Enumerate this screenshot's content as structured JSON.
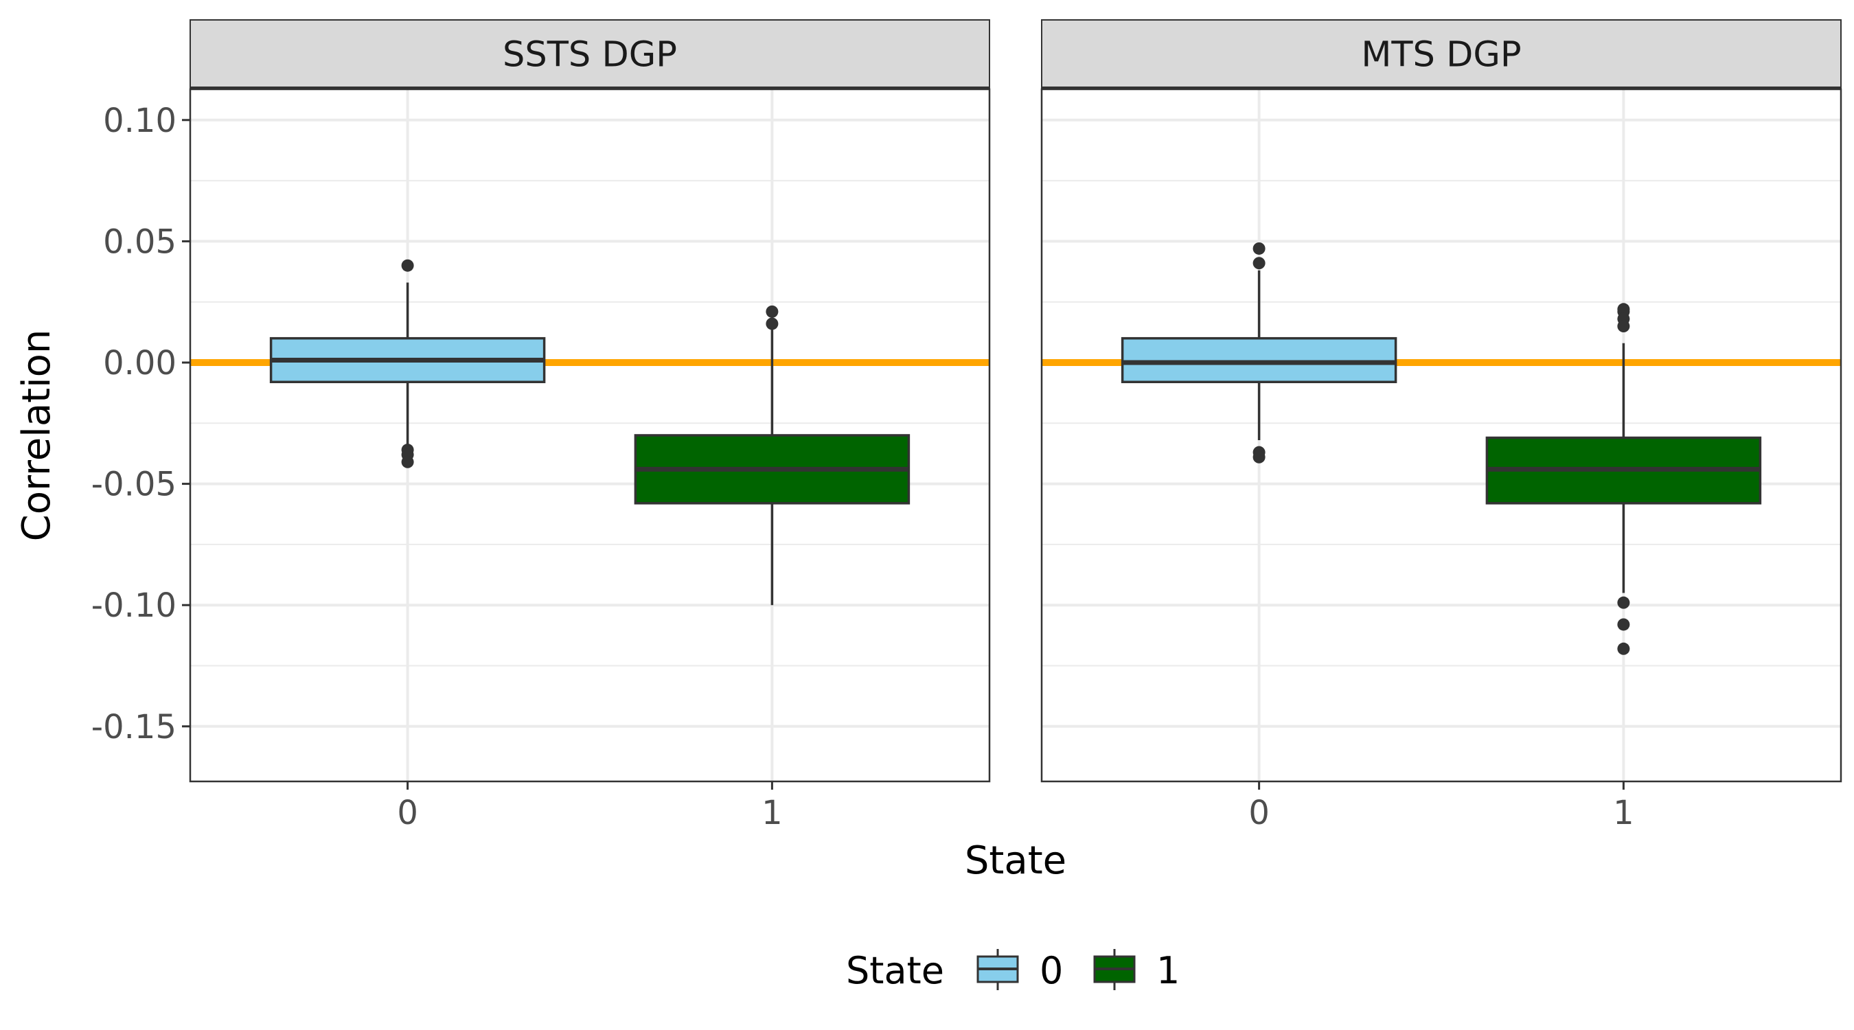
{
  "chart_data": {
    "type": "boxplot",
    "xlabel": "State",
    "ylabel": "Correlation",
    "ylim": [
      -0.172,
      0.113
    ],
    "y_ticks": [
      0.1,
      0.05,
      0.0,
      -0.05,
      -0.1,
      -0.15
    ],
    "y_tick_labels": [
      "0.10",
      "0.05",
      "0.00",
      "-0.05",
      "-0.10",
      "-0.15"
    ],
    "categories": [
      "0",
      "1"
    ],
    "reference_line": {
      "y": 0.0,
      "color": "#FFA500"
    },
    "legend": {
      "title": "State",
      "position": "bottom",
      "items": [
        {
          "label": "0",
          "color": "#87CEEB"
        },
        {
          "label": "1",
          "color": "#006400"
        }
      ]
    },
    "panels": [
      {
        "title": "SSTS DGP",
        "boxes": [
          {
            "state": "0",
            "color": "#87CEEB",
            "q1": -0.008,
            "median": 0.001,
            "q3": 0.01,
            "whisker_low": -0.035,
            "whisker_high": 0.033,
            "outliers": [
              0.04,
              -0.036,
              -0.038,
              -0.041
            ]
          },
          {
            "state": "1",
            "color": "#006400",
            "q1": -0.058,
            "median": -0.044,
            "q3": -0.03,
            "whisker_low": -0.1,
            "whisker_high": 0.014,
            "outliers": [
              0.021,
              0.016
            ]
          }
        ]
      },
      {
        "title": "MTS DGP",
        "boxes": [
          {
            "state": "0",
            "color": "#87CEEB",
            "q1": -0.008,
            "median": 0.0,
            "q3": 0.01,
            "whisker_low": -0.032,
            "whisker_high": 0.038,
            "outliers": [
              0.047,
              0.041,
              -0.037,
              -0.039
            ]
          },
          {
            "state": "1",
            "color": "#006400",
            "q1": -0.058,
            "median": -0.044,
            "q3": -0.031,
            "whisker_low": -0.095,
            "whisker_high": 0.008,
            "outliers": [
              0.022,
              0.021,
              0.018,
              0.015,
              -0.099,
              -0.108,
              -0.118
            ]
          }
        ]
      }
    ]
  }
}
